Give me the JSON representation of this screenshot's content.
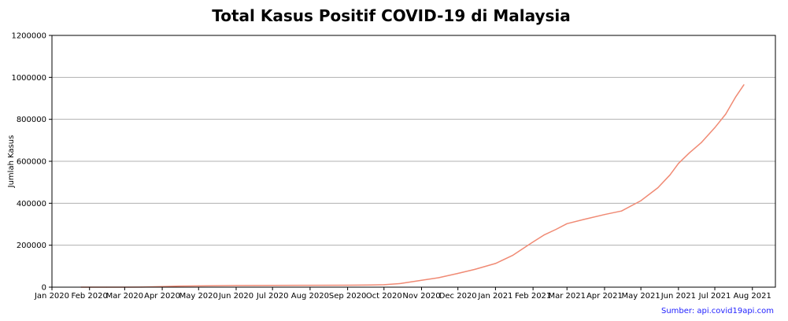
{
  "chart_data": {
    "type": "line",
    "title": "Total Kasus Positif COVID-19 di Malaysia",
    "xlabel": "",
    "ylabel": "Jumlah Kasus",
    "ylim": [
      0,
      1200000
    ],
    "xlim": [
      "2020-01-01",
      "2021-08-20"
    ],
    "y_ticks": [
      0,
      200000,
      400000,
      600000,
      800000,
      1000000,
      1200000
    ],
    "y_tick_labels": [
      "0",
      "200000",
      "400000",
      "600000",
      "800000",
      "1000000",
      "1200000"
    ],
    "x_ticks": [
      "2020-01-01",
      "2020-02-01",
      "2020-03-01",
      "2020-04-01",
      "2020-05-01",
      "2020-06-01",
      "2020-07-01",
      "2020-08-01",
      "2020-09-01",
      "2020-10-01",
      "2020-11-01",
      "2020-12-01",
      "2021-01-01",
      "2021-02-01",
      "2021-03-01",
      "2021-04-01",
      "2021-05-01",
      "2021-06-01",
      "2021-07-01",
      "2021-08-01"
    ],
    "x_tick_labels": [
      "Jan 2020",
      "Feb 2020",
      "Mar 2020",
      "Apr 2020",
      "May 2020",
      "Jun 2020",
      "Jul 2020",
      "Aug 2020",
      "Sep 2020",
      "Oct 2020",
      "Nov 2020",
      "Dec 2020",
      "Jan 2021",
      "Feb 2021",
      "Mar 2021",
      "Apr 2021",
      "May 2021",
      "Jun 2021",
      "Jul 2021",
      "Aug 2021"
    ],
    "grid": "horizontal",
    "line_color": "#f08a74",
    "series": [
      {
        "x": [
          "2020-01-25",
          "2020-02-15",
          "2020-03-01",
          "2020-03-15",
          "2020-04-01",
          "2020-04-15",
          "2020-05-01",
          "2020-06-01",
          "2020-07-01",
          "2020-08-01",
          "2020-09-01",
          "2020-09-20",
          "2020-10-01",
          "2020-10-15",
          "2020-11-01",
          "2020-11-15",
          "2020-12-01",
          "2020-12-15",
          "2021-01-01",
          "2021-01-15",
          "2021-01-31",
          "2021-02-10",
          "2021-02-20",
          "2021-03-01",
          "2021-03-15",
          "2021-04-01",
          "2021-04-15",
          "2021-05-01",
          "2021-05-15",
          "2021-05-25",
          "2021-06-01",
          "2021-06-10",
          "2021-06-20",
          "2021-07-01",
          "2021-07-10",
          "2021-07-18",
          "2021-07-25"
        ],
        "values": [
          4,
          22,
          29,
          428,
          2766,
          5072,
          6071,
          7857,
          8639,
          9002,
          9354,
          10219,
          11771,
          17540,
          32505,
          45095,
          65697,
          84730,
          113010,
          151066,
          211988,
          248659,
          275699,
          302580,
          323000,
          346000,
          363000,
          412000,
          474000,
          535000,
          590000,
          640000,
          690000,
          760000,
          825000,
          905000,
          965000
        ]
      }
    ],
    "annotation": "Sumber: api.covid19api.com",
    "annotation_color": "#1f1fff"
  }
}
